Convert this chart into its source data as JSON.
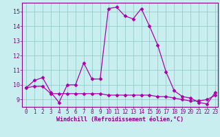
{
  "xlabel": "Windchill (Refroidissement éolien,°C)",
  "background_color": "#c8eef0",
  "line_color": "#aa00aa",
  "grid_color": "#99cccc",
  "xlim": [
    -0.5,
    23.3
  ],
  "ylim": [
    8.5,
    15.6
  ],
  "xticks": [
    0,
    1,
    2,
    3,
    4,
    5,
    6,
    7,
    8,
    9,
    10,
    11,
    12,
    13,
    14,
    15,
    16,
    17,
    18,
    19,
    20,
    21,
    22,
    23
  ],
  "yticks": [
    9,
    10,
    11,
    12,
    13,
    14,
    15
  ],
  "line1_x": [
    0,
    1,
    2,
    3,
    4,
    5,
    6,
    7,
    8,
    9,
    10,
    11,
    12,
    13,
    14,
    15,
    16,
    17,
    18,
    19,
    20,
    21,
    22,
    23
  ],
  "line1_y": [
    9.8,
    10.3,
    10.5,
    9.5,
    8.8,
    10.0,
    10.0,
    11.5,
    10.4,
    10.4,
    15.2,
    15.3,
    14.7,
    14.5,
    15.2,
    14.0,
    12.7,
    10.9,
    9.6,
    9.2,
    9.1,
    8.8,
    8.7,
    9.5
  ],
  "line2_x": [
    0,
    1,
    2,
    3,
    4,
    5,
    6,
    7,
    8,
    9,
    10,
    11,
    12,
    13,
    14,
    15,
    16,
    17,
    18,
    19,
    20,
    21,
    22,
    23
  ],
  "line2_y": [
    9.8,
    9.9,
    9.9,
    9.4,
    9.4,
    9.4,
    9.4,
    9.4,
    9.4,
    9.4,
    9.3,
    9.3,
    9.3,
    9.3,
    9.3,
    9.3,
    9.2,
    9.2,
    9.1,
    9.0,
    8.9,
    8.9,
    9.0,
    9.3
  ],
  "marker": "D",
  "markersize": 2.5,
  "linewidth": 0.9,
  "tick_fontsize": 5.5,
  "label_fontsize": 6.0,
  "tick_color": "#880088",
  "label_color": "#880088",
  "axis_color": "#880088"
}
